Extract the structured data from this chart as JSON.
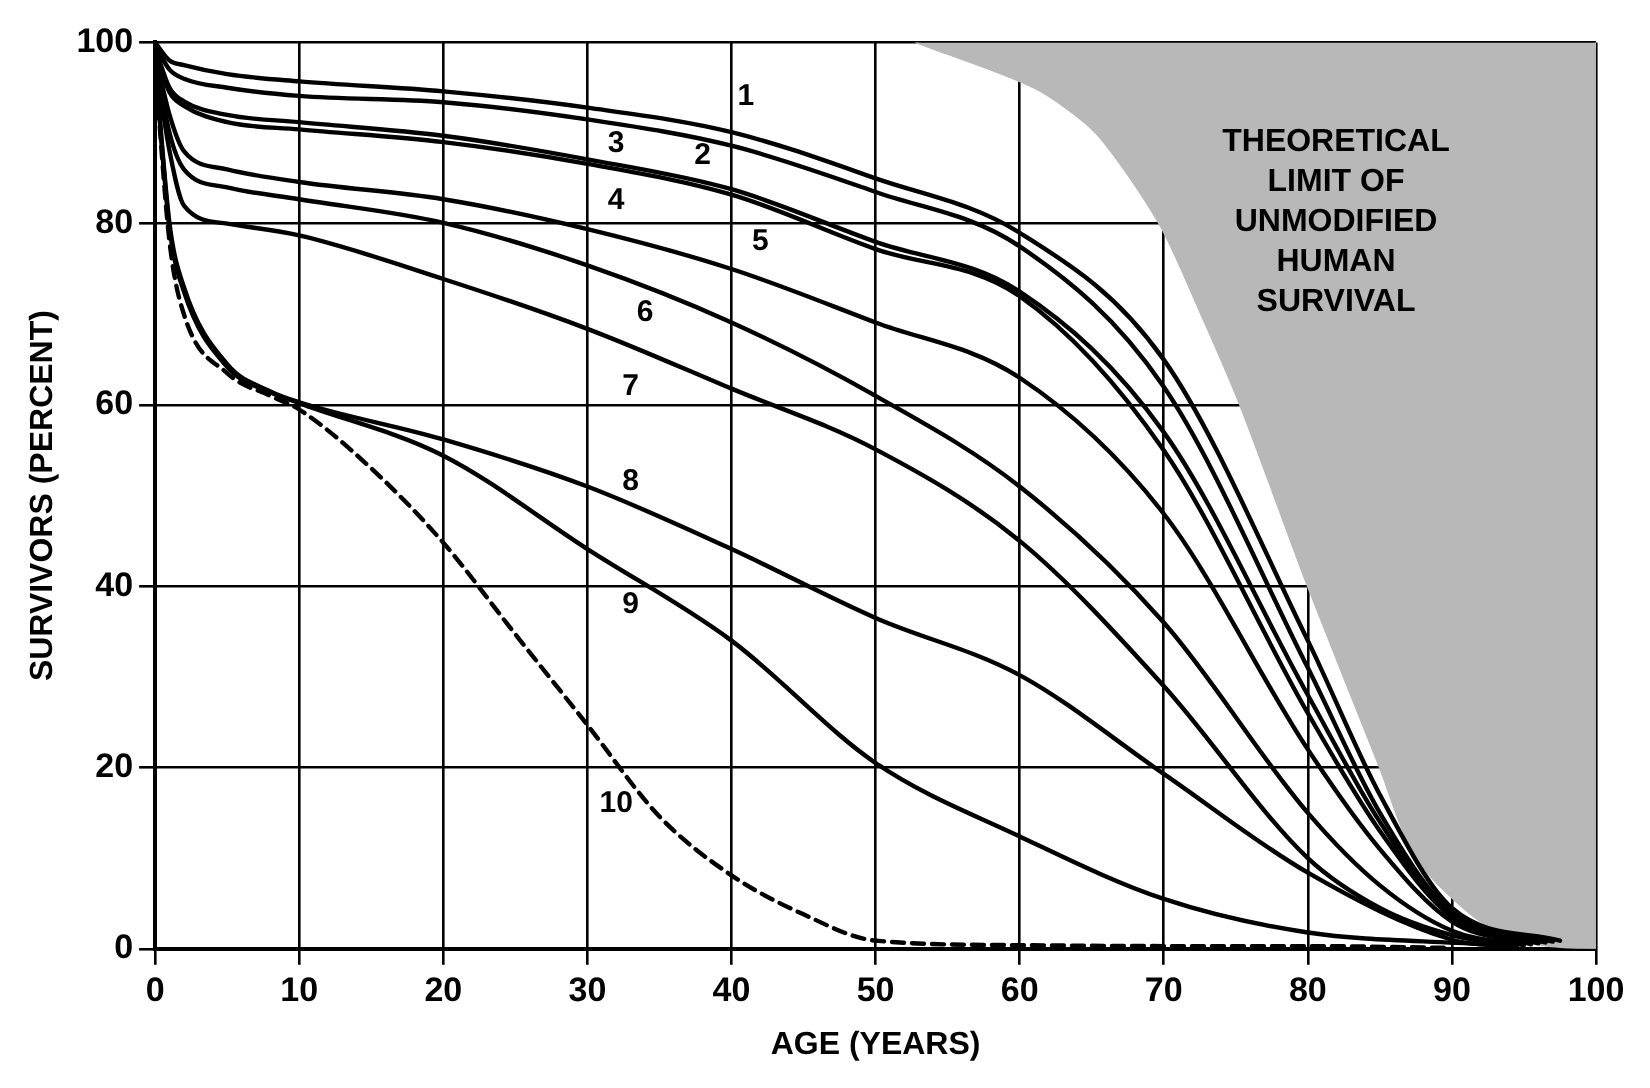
{
  "chart_data": {
    "type": "line",
    "xlabel": "AGE (YEARS)",
    "ylabel": "SURVIVORS (PERCENT)",
    "xlim": [
      0,
      100
    ],
    "ylim": [
      0,
      100
    ],
    "xticks": [
      0,
      10,
      20,
      30,
      40,
      50,
      60,
      70,
      80,
      90,
      100
    ],
    "yticks": [
      0,
      20,
      40,
      60,
      80,
      100
    ],
    "grid": true,
    "legend": false,
    "marker": "none",
    "line_style": "solid",
    "annotations": [
      "THEORETICAL\nLIMIT OF\nUNMODIFIED\nHUMAN\nSURVIVAL"
    ],
    "series": [
      {
        "type": "area",
        "color": "#b8b8b8",
        "x": [
          52.8,
          61,
          65.3,
          69.7,
          72.6,
          75.3,
          80,
          85,
          87.5,
          92,
          96,
          100,
          100
        ],
        "values": [
          100,
          95,
          90,
          80,
          70,
          60,
          40,
          20,
          10,
          3,
          0.5,
          0,
          100
        ]
      },
      {
        "name": "1",
        "color": "#000000",
        "x": [
          0,
          1,
          2,
          5,
          10,
          20,
          30,
          40,
          50,
          60,
          70,
          80,
          85,
          90,
          97.5
        ],
        "values": [
          100,
          98,
          97.5,
          96.5,
          95.7,
          94.6,
          92.8,
          90.1,
          85,
          79,
          65,
          34,
          17,
          4.5,
          0.9
        ]
      },
      {
        "name": "2",
        "color": "#000000",
        "x": [
          0,
          1,
          2,
          5,
          10,
          20,
          30,
          40,
          50,
          60,
          70,
          80,
          85,
          90,
          97
        ],
        "values": [
          99.7,
          97,
          96,
          95,
          94.1,
          93.4,
          91.5,
          88.6,
          83.5,
          77.5,
          62,
          31,
          15,
          4,
          0.8
        ]
      },
      {
        "name": "3",
        "color": "#000000",
        "x": [
          0,
          1,
          2,
          5,
          10,
          20,
          30,
          40,
          50,
          60,
          70,
          80,
          85,
          90,
          96.5
        ],
        "values": [
          99.4,
          95,
          93.5,
          92,
          91.2,
          89.7,
          87.1,
          83.8,
          78,
          72.5,
          57,
          28,
          14,
          3.5,
          0.7
        ]
      },
      {
        "name": "4",
        "color": "#000000",
        "x": [
          0,
          1,
          2,
          5,
          10,
          20,
          30,
          40,
          50,
          60,
          70,
          80,
          85,
          90,
          96
        ],
        "values": [
          99.1,
          94.5,
          93,
          91.2,
          90.4,
          89,
          86.6,
          83.2,
          77.2,
          72,
          55,
          26,
          13,
          3.5,
          0.6
        ]
      },
      {
        "name": "5",
        "color": "#000000",
        "x": [
          0,
          1,
          2,
          5,
          10,
          20,
          30,
          40,
          50,
          60,
          70,
          80,
          85,
          90,
          95.5
        ],
        "values": [
          98.8,
          92,
          88,
          86,
          84.6,
          82.7,
          79.4,
          75,
          69.1,
          63,
          48,
          22,
          11,
          3,
          0.5
        ]
      },
      {
        "name": "6",
        "color": "#000000",
        "x": [
          0,
          1,
          2,
          5,
          10,
          20,
          30,
          40,
          50,
          60,
          70,
          80,
          85,
          90,
          95
        ],
        "values": [
          98.5,
          90,
          86,
          84,
          82.7,
          80.1,
          75.4,
          69.1,
          61,
          51,
          36,
          15,
          7,
          2,
          0.4
        ]
      },
      {
        "name": "7",
        "color": "#000000",
        "x": [
          0,
          1,
          2,
          5,
          10,
          20,
          30,
          40,
          50,
          60,
          70,
          80,
          85,
          90,
          94.5
        ],
        "values": [
          98.2,
          88,
          82,
          80,
          78.7,
          73.9,
          68.4,
          61.8,
          55.1,
          45,
          29,
          10,
          4.5,
          1.5,
          0.3
        ]
      },
      {
        "name": "8",
        "color": "#000000",
        "x": [
          0,
          1,
          2,
          5,
          8,
          10,
          20,
          30,
          40,
          50,
          60,
          70,
          80,
          90,
          94
        ],
        "values": [
          97.9,
          80,
          73,
          64.5,
          61.5,
          60.3,
          56.2,
          51,
          44.1,
          36.5,
          30.2,
          19.3,
          8.4,
          1,
          0.2
        ]
      },
      {
        "name": "9",
        "color": "#000000",
        "x": [
          0,
          1,
          2,
          5,
          8,
          10,
          20,
          30,
          40,
          50,
          60,
          70,
          80,
          92
        ],
        "values": [
          97.6,
          79.5,
          72.5,
          64.2,
          61.4,
          60.2,
          54.4,
          44.1,
          34,
          20.5,
          12.4,
          5.5,
          1.8,
          0.5
        ]
      },
      {
        "name": "10",
        "color": "#000000",
        "line_style": "dashed",
        "x": [
          0,
          1,
          2,
          5,
          8,
          10,
          15,
          20,
          25,
          30,
          35,
          40,
          45,
          50,
          60,
          70,
          80,
          90
        ],
        "values": [
          97.3,
          78,
          70,
          63.5,
          61,
          59.5,
          53,
          44.8,
          34.7,
          24.7,
          14.6,
          8.1,
          3.8,
          0.9,
          0.4,
          0.3,
          0.3,
          0.1
        ]
      }
    ]
  }
}
